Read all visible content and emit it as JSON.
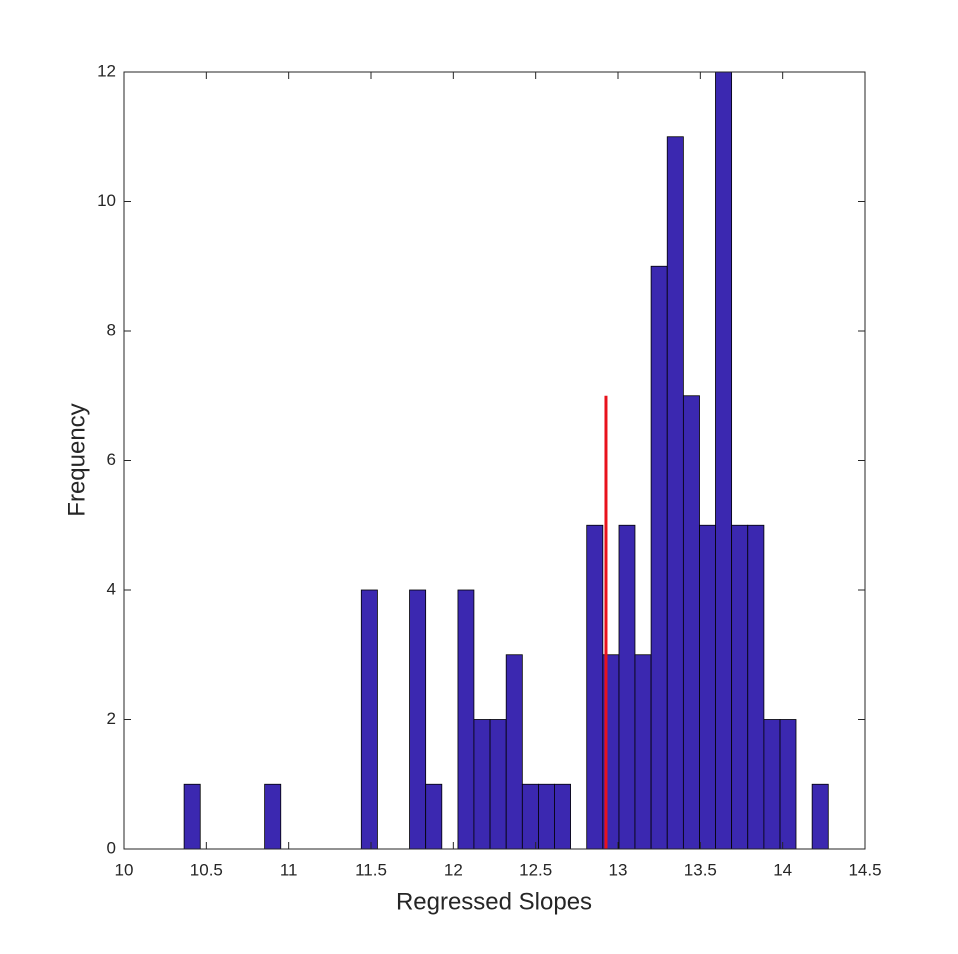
{
  "chart_data": {
    "type": "histogram",
    "xlabel": "Regressed Slopes",
    "ylabel": "Frequency",
    "bins": [
      10.365,
      10.463,
      10.561,
      10.658,
      10.756,
      10.854,
      10.952,
      11.05,
      11.147,
      11.245,
      11.343,
      11.441,
      11.539,
      11.636,
      11.734,
      11.832,
      11.93,
      12.028,
      12.125,
      12.223,
      12.321,
      12.419,
      12.517,
      12.614,
      12.712,
      12.81,
      12.908,
      13.006,
      13.103,
      13.201,
      13.299,
      13.397,
      13.495,
      13.592,
      13.69,
      13.788,
      13.886,
      13.984,
      14.081,
      14.179,
      14.277
    ],
    "values": [
      1,
      0,
      0,
      0,
      0,
      1,
      0,
      0,
      0,
      0,
      0,
      4,
      0,
      0,
      4,
      1,
      0,
      4,
      2,
      2,
      3,
      1,
      1,
      1,
      0,
      5,
      3,
      5,
      3,
      9,
      11,
      7,
      5,
      12,
      5,
      5,
      2,
      2,
      0,
      1
    ],
    "color": "#3b28b0",
    "vline": {
      "x": 12.927,
      "ymax": 7,
      "color": "#e8121c"
    },
    "xlim": [
      10,
      14.5
    ],
    "ylim": [
      0,
      12
    ],
    "xticks": [
      10,
      10.5,
      11,
      11.5,
      12,
      12.5,
      13,
      13.5,
      14,
      14.5
    ],
    "yticks": [
      0,
      2,
      4,
      6,
      8,
      10,
      12
    ]
  }
}
